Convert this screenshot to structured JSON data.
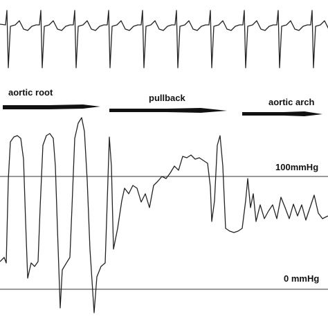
{
  "labels": {
    "aortic_root": "aortic root",
    "pullback": "pullback",
    "aortic_arch": "aortic arch",
    "high_pressure": "100mmHg",
    "zero_pressure": "0 mmHg"
  }
}
